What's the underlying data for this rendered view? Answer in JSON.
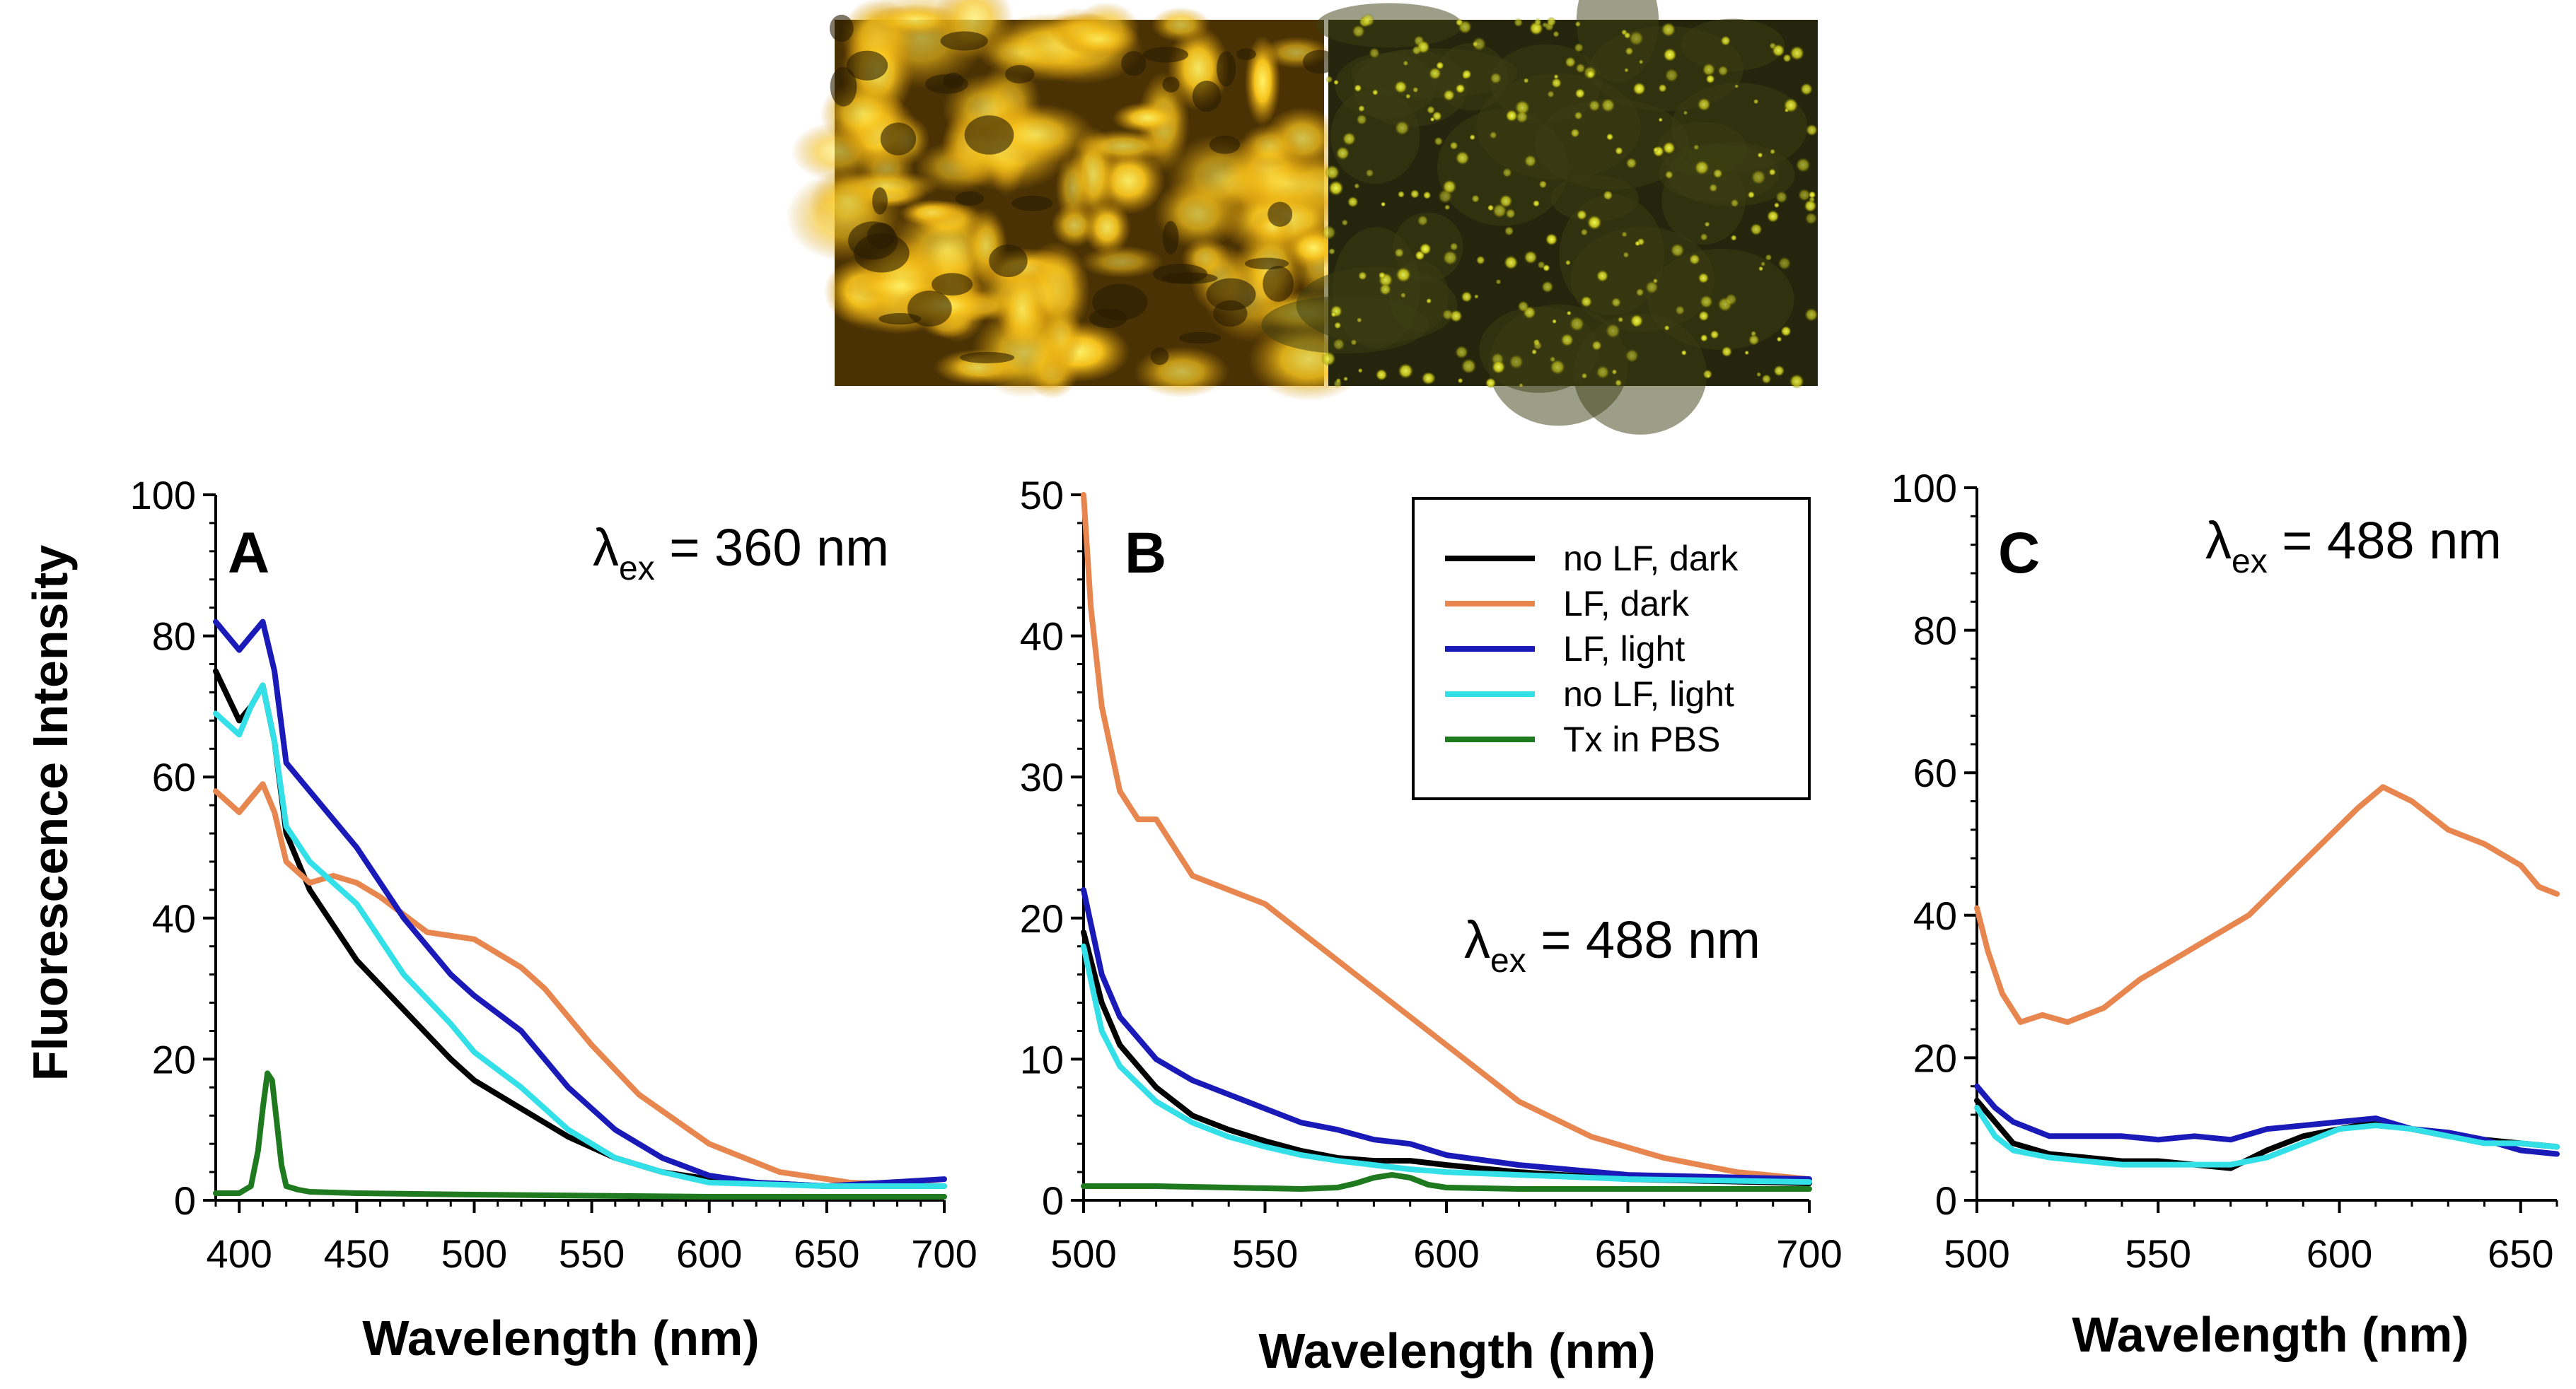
{
  "images": {
    "left_alt": "Fluorescence micrograph (bright orange-yellow)",
    "right_alt": "Fluorescence micrograph (dim green-yellow puncta)"
  },
  "shared": {
    "ylabel": "Fluorescence Intensity",
    "xlabel": "Wavelength (nm)"
  },
  "legend": {
    "entries": [
      {
        "label": "no LF, dark",
        "color": "#000000"
      },
      {
        "label": "LF, dark",
        "color": "#e8864f"
      },
      {
        "label": "LF, light",
        "color": "#1a1ab8"
      },
      {
        "label": "no LF, light",
        "color": "#33e0e8"
      },
      {
        "label": "Tx in PBS",
        "color": "#1f7a1f"
      }
    ]
  },
  "chart_data": [
    {
      "type": "line",
      "panel": "A",
      "annotation": {
        "lambda": "λ",
        "sub": "ex",
        "rest": " = 360 nm"
      },
      "xlim": [
        390,
        700
      ],
      "ylim": [
        0,
        100
      ],
      "xticks": [
        400,
        450,
        500,
        550,
        600,
        650,
        700
      ],
      "yticks": [
        0,
        20,
        40,
        60,
        80,
        100
      ],
      "series": [
        {
          "name": "no LF, dark",
          "color": "#000000",
          "x": [
            390,
            400,
            405,
            410,
            415,
            420,
            430,
            450,
            470,
            490,
            500,
            520,
            540,
            560,
            580,
            600,
            620,
            650,
            700
          ],
          "y": [
            75,
            68,
            70,
            73,
            65,
            52,
            44,
            34,
            27,
            20,
            17,
            13,
            9,
            6,
            4,
            3,
            2.5,
            2,
            2
          ]
        },
        {
          "name": "LF, dark",
          "color": "#e8864f",
          "x": [
            390,
            400,
            405,
            410,
            415,
            420,
            430,
            440,
            450,
            460,
            480,
            500,
            520,
            530,
            550,
            570,
            600,
            630,
            660,
            700
          ],
          "y": [
            58,
            55,
            57,
            59,
            55,
            48,
            45,
            46,
            45,
            43,
            38,
            37,
            33,
            30,
            22,
            15,
            8,
            4,
            2.5,
            2
          ]
        },
        {
          "name": "LF, light",
          "color": "#1a1ab8",
          "x": [
            390,
            400,
            405,
            410,
            415,
            420,
            430,
            450,
            470,
            490,
            500,
            520,
            540,
            560,
            580,
            600,
            620,
            650,
            700
          ],
          "y": [
            82,
            78,
            80,
            82,
            75,
            62,
            58,
            50,
            40,
            32,
            29,
            24,
            16,
            10,
            6,
            3.5,
            2.5,
            2,
            3
          ]
        },
        {
          "name": "no LF, light",
          "color": "#33e0e8",
          "x": [
            390,
            400,
            405,
            410,
            415,
            420,
            430,
            440,
            450,
            470,
            490,
            500,
            520,
            540,
            560,
            580,
            600,
            650,
            700
          ],
          "y": [
            69,
            66,
            70,
            73,
            65,
            53,
            48,
            45,
            42,
            32,
            25,
            21,
            16,
            10,
            6,
            4,
            2.5,
            2,
            2
          ]
        },
        {
          "name": "Tx in PBS",
          "color": "#1f7a1f",
          "x": [
            390,
            400,
            405,
            408,
            410,
            412,
            414,
            416,
            418,
            420,
            425,
            430,
            450,
            500,
            600,
            700
          ],
          "y": [
            1,
            1,
            2,
            7,
            13,
            18,
            17,
            11,
            5,
            2,
            1.5,
            1.2,
            1,
            0.8,
            0.5,
            0.5
          ]
        }
      ]
    },
    {
      "type": "line",
      "panel": "B",
      "annotation": {
        "lambda": "λ",
        "sub": "ex",
        "rest": " = 488 nm"
      },
      "xlim": [
        500,
        700
      ],
      "ylim": [
        0,
        50
      ],
      "xticks": [
        500,
        550,
        600,
        650,
        700
      ],
      "yticks": [
        0,
        10,
        20,
        30,
        40,
        50
      ],
      "series": [
        {
          "name": "no LF, dark",
          "color": "#000000",
          "x": [
            500,
            505,
            510,
            520,
            530,
            540,
            550,
            560,
            570,
            580,
            590,
            600,
            620,
            650,
            700
          ],
          "y": [
            19,
            14,
            11,
            8,
            6,
            5,
            4.2,
            3.5,
            3,
            2.8,
            2.8,
            2.5,
            2,
            1.5,
            1.2
          ]
        },
        {
          "name": "LF, dark",
          "color": "#e8864f",
          "x": [
            500,
            502,
            505,
            510,
            515,
            520,
            525,
            530,
            540,
            550,
            560,
            570,
            580,
            590,
            600,
            620,
            640,
            660,
            680,
            700
          ],
          "y": [
            50,
            42,
            35,
            29,
            27,
            27,
            25,
            23,
            22,
            21,
            19,
            17,
            15,
            13,
            11,
            7,
            4.5,
            3,
            2,
            1.5
          ]
        },
        {
          "name": "LF, light",
          "color": "#1a1ab8",
          "x": [
            500,
            505,
            510,
            520,
            530,
            540,
            550,
            560,
            570,
            580,
            590,
            600,
            620,
            650,
            700
          ],
          "y": [
            22,
            16,
            13,
            10,
            8.5,
            7.5,
            6.5,
            5.5,
            5,
            4.3,
            4,
            3.2,
            2.5,
            1.8,
            1.5
          ]
        },
        {
          "name": "no LF, light",
          "color": "#33e0e8",
          "x": [
            500,
            505,
            510,
            520,
            530,
            540,
            550,
            560,
            570,
            580,
            590,
            600,
            620,
            650,
            700
          ],
          "y": [
            18,
            12,
            9.5,
            7,
            5.5,
            4.5,
            3.8,
            3.2,
            2.8,
            2.5,
            2.2,
            2,
            1.8,
            1.5,
            1.3
          ]
        },
        {
          "name": "Tx in PBS",
          "color": "#1f7a1f",
          "x": [
            500,
            520,
            540,
            560,
            570,
            575,
            580,
            585,
            590,
            595,
            600,
            620,
            650,
            700
          ],
          "y": [
            1,
            1,
            0.9,
            0.8,
            0.9,
            1.2,
            1.6,
            1.8,
            1.6,
            1.1,
            0.9,
            0.8,
            0.8,
            0.8
          ]
        }
      ]
    },
    {
      "type": "line",
      "panel": "C",
      "annotation": {
        "lambda": "λ",
        "sub": "ex",
        "rest": " = 488 nm"
      },
      "xlim": [
        500,
        660
      ],
      "ylim": [
        0,
        100
      ],
      "xticks": [
        500,
        550,
        600,
        650
      ],
      "yticks": [
        0,
        20,
        40,
        60,
        80,
        100
      ],
      "series": [
        {
          "name": "no LF, dark",
          "color": "#000000",
          "x": [
            500,
            505,
            510,
            520,
            530,
            540,
            550,
            560,
            570,
            580,
            590,
            600,
            610,
            620,
            630,
            640,
            650,
            660
          ],
          "y": [
            14,
            11,
            8,
            6.5,
            6,
            5.5,
            5.5,
            5,
            4.5,
            7,
            9,
            10,
            11,
            10,
            9,
            8.5,
            8,
            7.5
          ]
        },
        {
          "name": "LF, dark",
          "color": "#e8864f",
          "x": [
            500,
            503,
            507,
            512,
            518,
            525,
            535,
            545,
            555,
            565,
            575,
            585,
            595,
            605,
            612,
            620,
            630,
            640,
            650,
            655,
            660
          ],
          "y": [
            41,
            35,
            29,
            25,
            26,
            25,
            27,
            31,
            34,
            37,
            40,
            45,
            50,
            55,
            58,
            56,
            52,
            50,
            47,
            44,
            43
          ]
        },
        {
          "name": "LF, light",
          "color": "#1a1ab8",
          "x": [
            500,
            505,
            510,
            520,
            530,
            540,
            550,
            560,
            570,
            580,
            590,
            600,
            610,
            620,
            630,
            640,
            650,
            660
          ],
          "y": [
            16,
            13,
            11,
            9,
            9,
            9,
            8.5,
            9,
            8.5,
            10,
            10.5,
            11,
            11.5,
            10,
            9.5,
            8.5,
            7,
            6.5
          ]
        },
        {
          "name": "no LF, light",
          "color": "#33e0e8",
          "x": [
            500,
            505,
            510,
            520,
            530,
            540,
            550,
            560,
            570,
            580,
            590,
            600,
            610,
            620,
            630,
            640,
            650,
            660
          ],
          "y": [
            13,
            9,
            7,
            6,
            5.5,
            5,
            5,
            5,
            5,
            6,
            8,
            10,
            10.5,
            10,
            9,
            8,
            8,
            7.5
          ]
        }
      ]
    }
  ]
}
